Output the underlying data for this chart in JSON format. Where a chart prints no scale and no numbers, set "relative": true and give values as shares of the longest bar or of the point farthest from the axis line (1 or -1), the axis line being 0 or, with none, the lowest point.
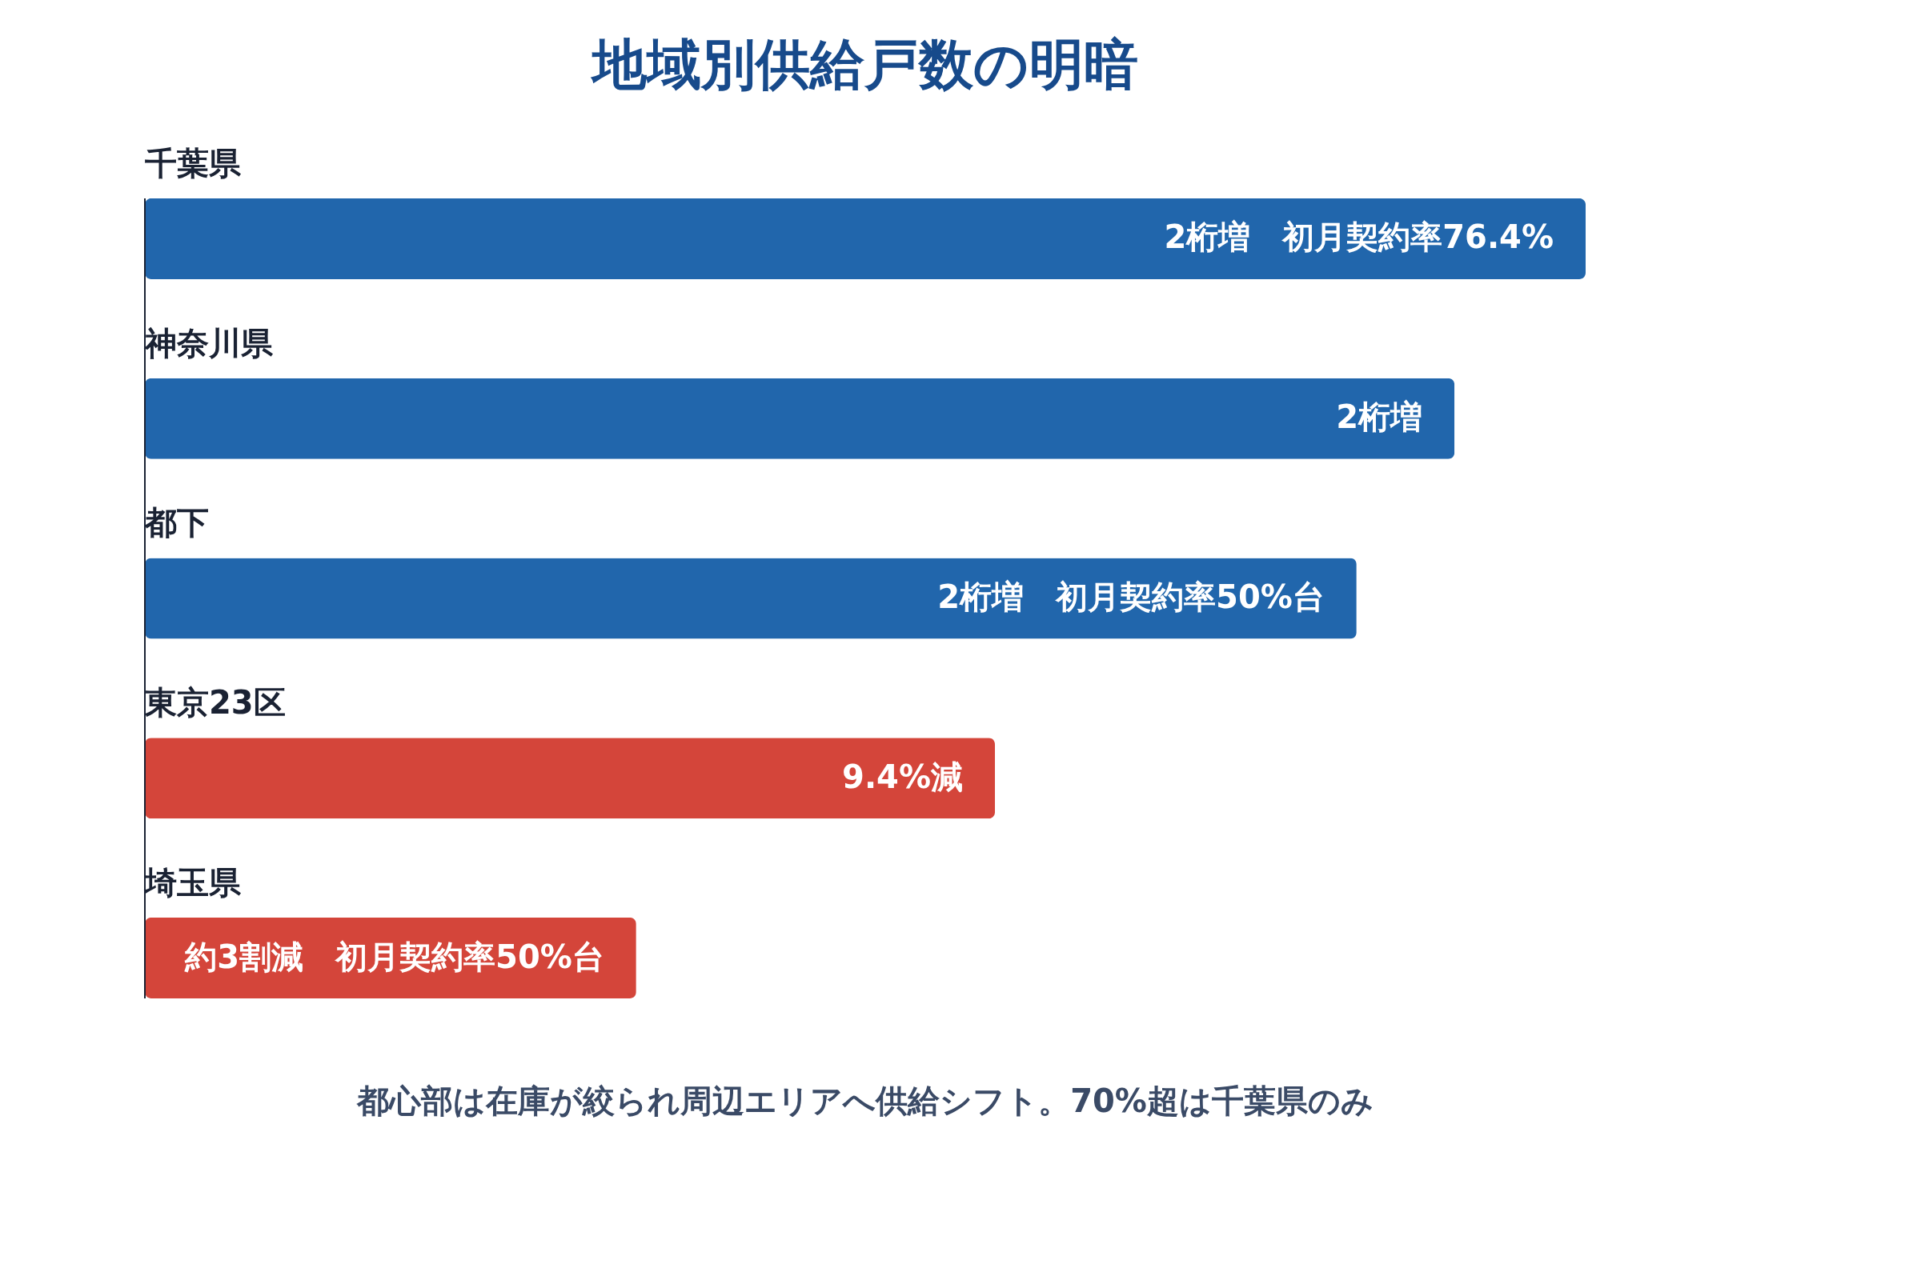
{
  "chart_data": {
    "type": "bar",
    "orientation": "horizontal",
    "relative": true,
    "title": "地域別供給戸数の明暗",
    "categories": [
      "千葉県",
      "神奈川県",
      "都下",
      "東京23区",
      "埼玉県"
    ],
    "values": [
      1,
      0.909,
      0.841,
      0.59,
      0.341
    ],
    "colors": [
      "#2166ac",
      "#2166ac",
      "#2166ac",
      "#d4453a",
      "#d4453a"
    ],
    "annotations": [
      "2桁増　初月契約率76.4%",
      "2桁増",
      "2桁増　初月契約率50%台",
      "9.4%減",
      "約3割減　初月契約率50%台",
      "都心部は在庫が絞られ周辺エリアへ供給シフト。70%超は千葉県のみ"
    ]
  }
}
